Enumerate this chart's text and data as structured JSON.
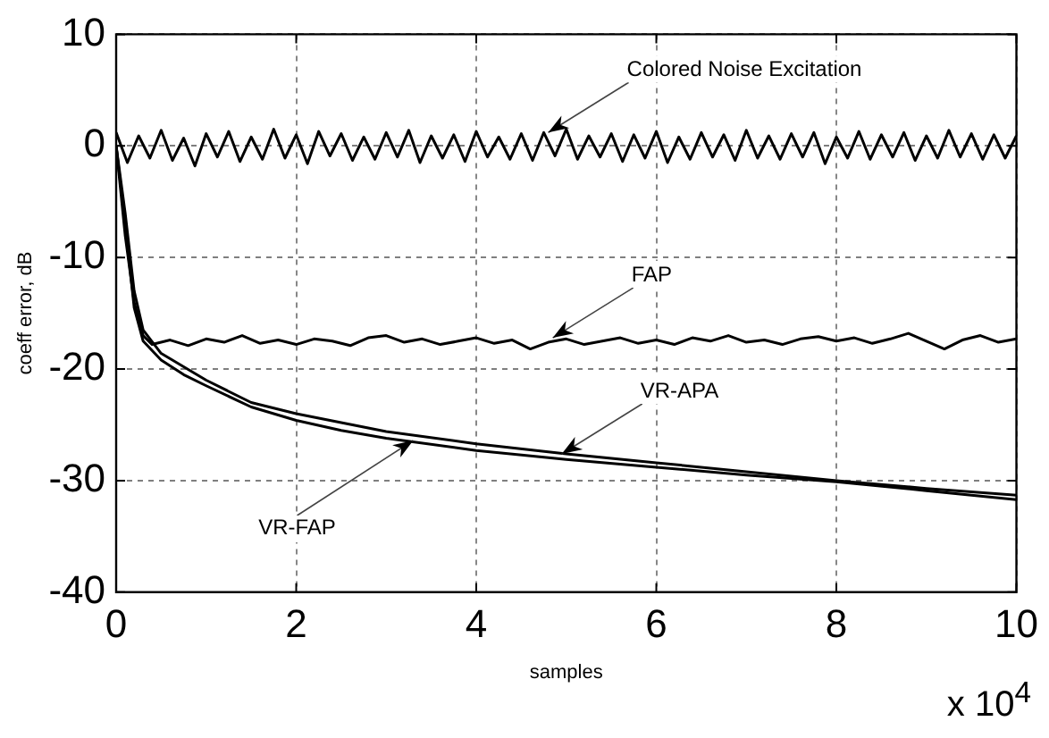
{
  "chart_data": {
    "type": "line",
    "xlabel": "samples",
    "ylabel": "coeff error, dB",
    "xlim": [
      0,
      10
    ],
    "xticks": [
      0,
      2,
      4,
      6,
      8,
      10
    ],
    "ylim": [
      -40,
      10
    ],
    "yticks": [
      -40,
      -30,
      -20,
      -10,
      0,
      10
    ],
    "grid": true,
    "legend": false,
    "marker": "none",
    "line_style": "solid",
    "series": [
      {
        "color": "#000000",
        "x": [
          0,
          0.125,
          0.25,
          0.375,
          0.5,
          0.625,
          0.75,
          0.875,
          1,
          1.125,
          1.25,
          1.375,
          1.5,
          1.625,
          1.75,
          1.875,
          2,
          2.125,
          2.25,
          2.375,
          2.5,
          2.625,
          2.75,
          2.875,
          3,
          3.125,
          3.25,
          3.375,
          3.5,
          3.625,
          3.75,
          3.875,
          4,
          4.125,
          4.25,
          4.375,
          4.5,
          4.625,
          4.75,
          4.875,
          5,
          5.125,
          5.25,
          5.375,
          5.5,
          5.625,
          5.75,
          5.875,
          6,
          6.125,
          6.25,
          6.375,
          6.5,
          6.625,
          6.75,
          6.875,
          7,
          7.125,
          7.25,
          7.375,
          7.5,
          7.625,
          7.75,
          7.875,
          8,
          8.125,
          8.25,
          8.375,
          8.5,
          8.625,
          8.75,
          8.875,
          9,
          9.125,
          9.25,
          9.375,
          9.5,
          9.625,
          9.75,
          9.875,
          10
        ],
        "values": [
          1.2,
          -1.5,
          0.9,
          -1.1,
          1.4,
          -1.3,
          0.7,
          -1.8,
          1.1,
          -1.0,
          1.3,
          -1.4,
          0.8,
          -1.2,
          1.5,
          -1.1,
          1.0,
          -1.6,
          1.3,
          -0.9,
          1.1,
          -1.3,
          0.8,
          -1.2,
          1.2,
          -1.0,
          1.4,
          -1.5,
          0.9,
          -1.1,
          1.0,
          -1.4,
          1.3,
          -1.0,
          0.8,
          -1.2,
          1.1,
          -1.3,
          1.2,
          -0.9,
          1.5,
          -1.2,
          0.9,
          -1.0,
          1.1,
          -1.4,
          1.0,
          -1.1,
          1.3,
          -1.5,
          0.8,
          -1.2,
          1.2,
          -1.0,
          1.0,
          -1.3,
          1.4,
          -1.1,
          0.9,
          -1.2,
          1.1,
          -1.0,
          1.2,
          -1.6,
          0.8,
          -1.1,
          1.3,
          -1.2,
          1.0,
          -1.0,
          1.2,
          -1.3,
          0.9,
          -1.1,
          1.4,
          -1.0,
          1.1,
          -1.2,
          1.0,
          -1.1,
          0.9
        ]
      },
      {
        "color": "#000000",
        "x": [
          0,
          0.1,
          0.2,
          0.3,
          0.4,
          0.6,
          0.8,
          1.0,
          1.2,
          1.4,
          1.6,
          1.8,
          2.0,
          2.2,
          2.4,
          2.6,
          2.8,
          3.0,
          3.2,
          3.4,
          3.6,
          3.8,
          4.0,
          4.2,
          4.4,
          4.6,
          4.8,
          5.0,
          5.2,
          5.4,
          5.6,
          5.8,
          6.0,
          6.2,
          6.4,
          6.6,
          6.8,
          7.0,
          7.2,
          7.4,
          7.6,
          7.8,
          8.0,
          8.2,
          8.4,
          8.6,
          8.8,
          9.0,
          9.2,
          9.4,
          9.6,
          9.8,
          10
        ],
        "values": [
          0,
          -8,
          -14,
          -17,
          -17.8,
          -17.4,
          -17.9,
          -17.3,
          -17.6,
          -17.0,
          -17.7,
          -17.4,
          -17.8,
          -17.3,
          -17.5,
          -17.9,
          -17.2,
          -17.0,
          -17.6,
          -17.3,
          -17.8,
          -17.5,
          -17.2,
          -17.7,
          -17.4,
          -18.2,
          -17.6,
          -17.3,
          -17.8,
          -17.5,
          -17.2,
          -17.7,
          -17.4,
          -17.8,
          -17.2,
          -17.5,
          -17.0,
          -17.6,
          -17.4,
          -17.8,
          -17.3,
          -17.1,
          -17.5,
          -17.2,
          -17.7,
          -17.3,
          -16.8,
          -17.5,
          -18.2,
          -17.4,
          -17.0,
          -17.6,
          -17.3
        ]
      },
      {
        "color": "#000000",
        "x": [
          0,
          0.1,
          0.2,
          0.3,
          0.5,
          0.75,
          1,
          1.5,
          2,
          2.5,
          3,
          4,
          5,
          6,
          7,
          8,
          9,
          10
        ],
        "values": [
          0,
          -6,
          -13,
          -16.5,
          -18.6,
          -19.8,
          -21,
          -23,
          -24,
          -24.8,
          -25.6,
          -26.7,
          -27.6,
          -28.4,
          -29.2,
          -30,
          -30.7,
          -31.3
        ]
      },
      {
        "color": "#000000",
        "x": [
          0,
          0.1,
          0.2,
          0.3,
          0.5,
          0.75,
          1,
          1.5,
          2,
          2.5,
          3,
          4,
          5,
          6,
          7,
          8,
          9,
          10
        ],
        "values": [
          0,
          -7,
          -14.5,
          -17.5,
          -19.2,
          -20.5,
          -21.5,
          -23.4,
          -24.6,
          -25.5,
          -26.2,
          -27.3,
          -28.1,
          -28.8,
          -29.5,
          -30.1,
          -30.9,
          -31.7
        ]
      }
    ],
    "annotations": [
      {
        "text": "Colored Noise Excitation",
        "x": 4.8,
        "y": 1.2
      },
      {
        "text": "FAP",
        "x": 4.85,
        "y": -17.2
      },
      {
        "text": "VR-APA",
        "x": 4.95,
        "y": -27.6
      },
      {
        "text": "VR-FAP",
        "x": 3.3,
        "y": -26.4
      },
      "x 10$^{4}$"
    ]
  }
}
